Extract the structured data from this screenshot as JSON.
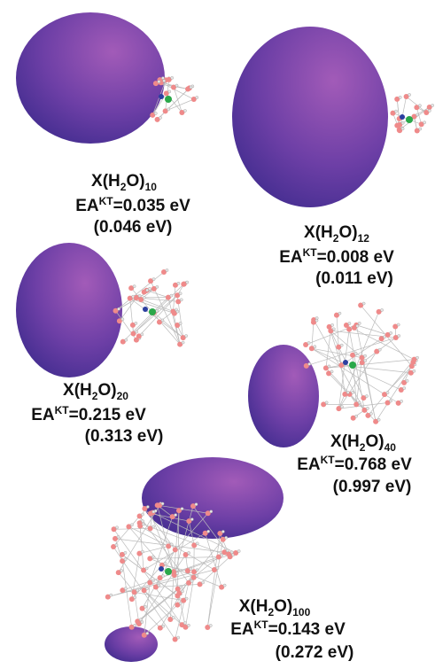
{
  "panels": [
    {
      "formula": {
        "head": "X(H",
        "h": "2",
        "tail": "O)",
        "n": "10"
      },
      "ea": {
        "name": "EA",
        "sup": "KT",
        "value": "=0.035 eV"
      },
      "paren": "(0.046 eV)"
    },
    {
      "formula": {
        "head": "X(H",
        "h": "2",
        "tail": "O)",
        "n": "12"
      },
      "ea": {
        "name": "EA",
        "sup": "KT",
        "value": "=0.008 eV"
      },
      "paren": "(0.011 eV)"
    },
    {
      "formula": {
        "head": "X(H",
        "h": "2",
        "tail": "O)",
        "n": "20"
      },
      "ea": {
        "name": "EA",
        "sup": "KT",
        "value": "=0.215 eV"
      },
      "paren": "(0.313 eV)"
    },
    {
      "formula": {
        "head": "X(H",
        "h": "2",
        "tail": "O)",
        "n": "40"
      },
      "ea": {
        "name": "EA",
        "sup": "KT",
        "value": "=0.768 eV"
      },
      "paren": "(0.997 eV)"
    },
    {
      "formula": {
        "head": "X(H",
        "h": "2",
        "tail": "O)",
        "n": "100"
      },
      "ea": {
        "name": "EA",
        "sup": "KT",
        "value": "=0.143 eV"
      },
      "paren": "(0.272 eV)"
    }
  ]
}
